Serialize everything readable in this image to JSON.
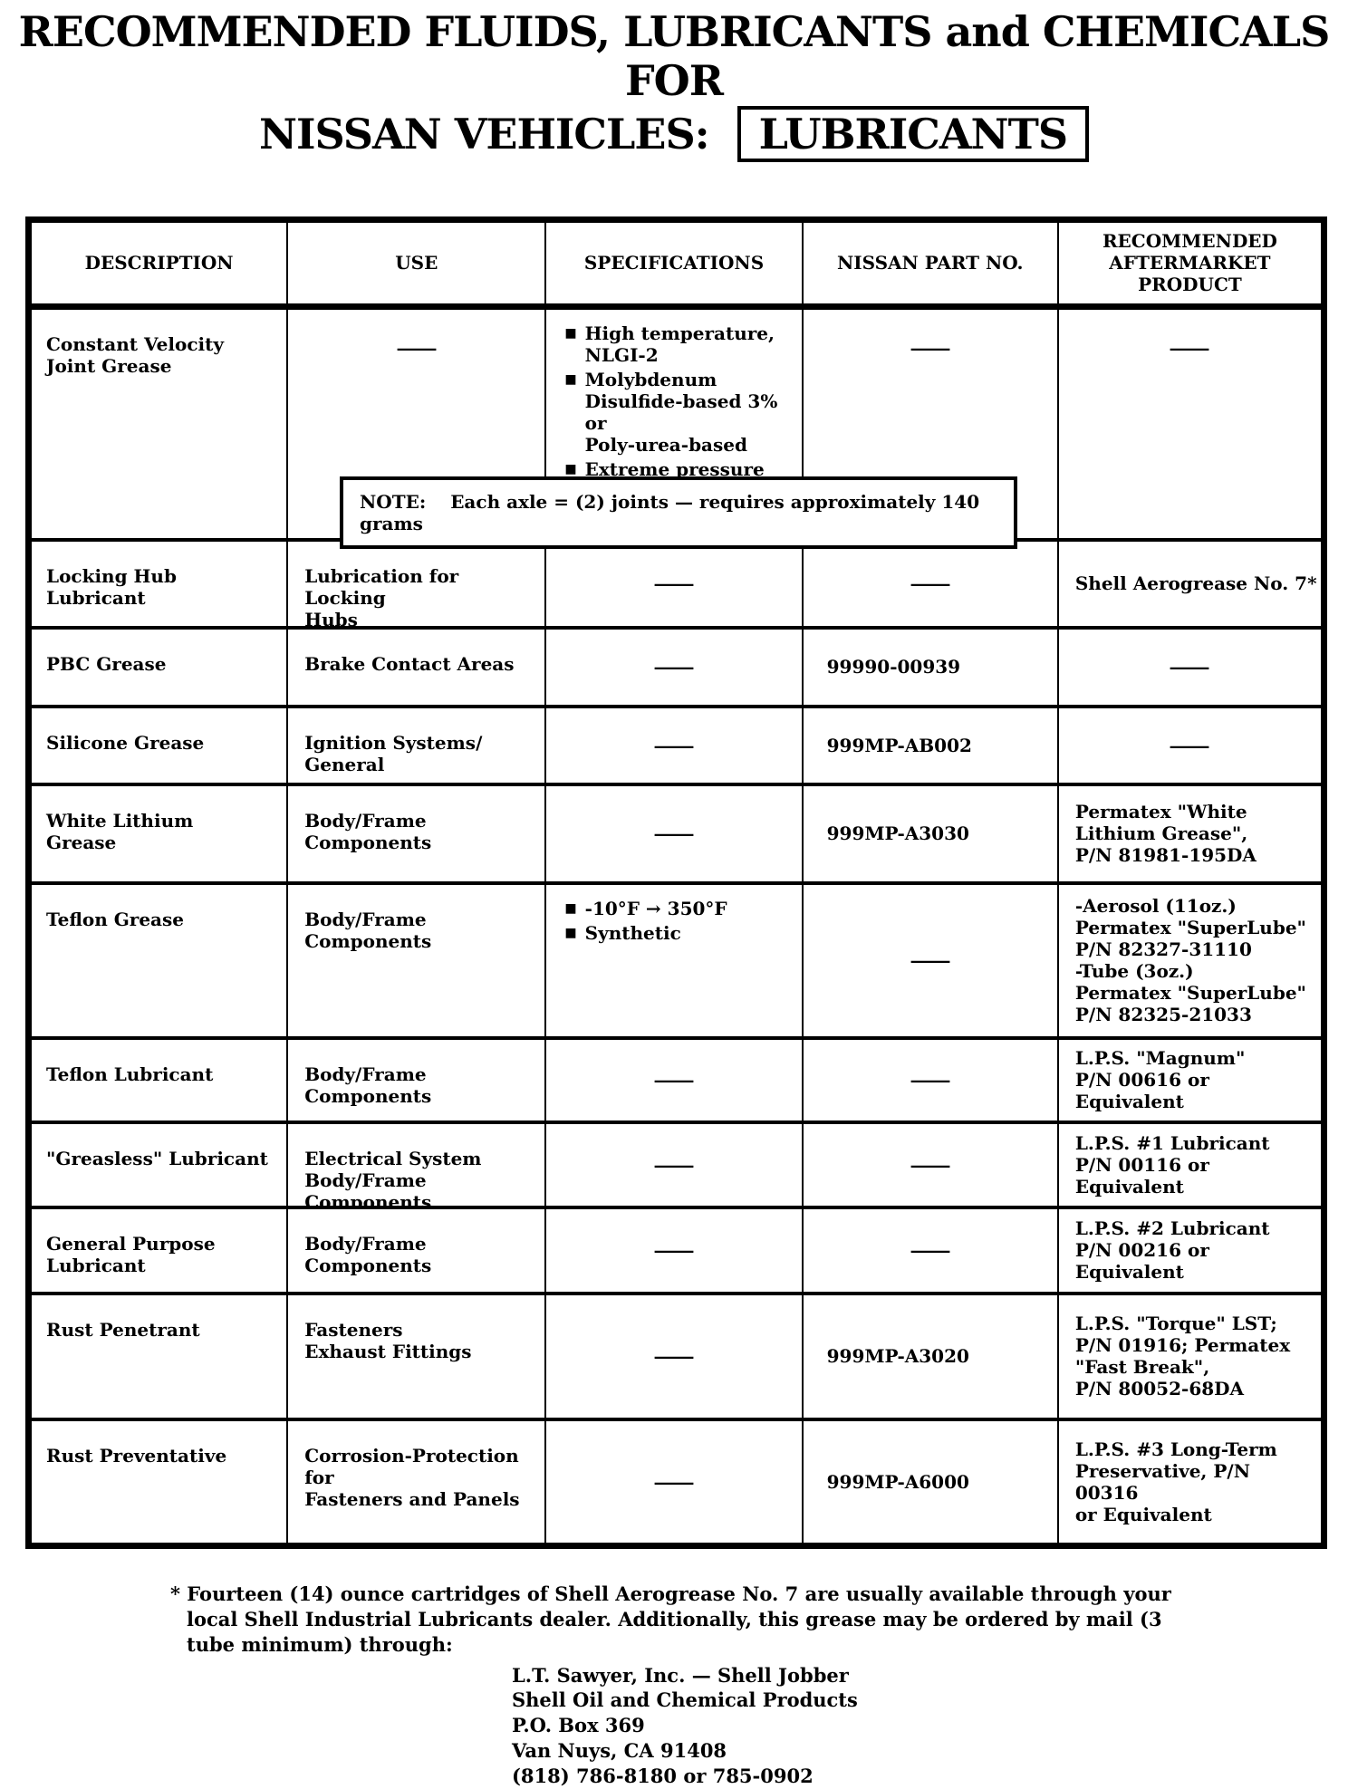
{
  "colors": {
    "ink": "#000000",
    "paper": "#ffffff"
  },
  "icons": {
    "bullet_square": "■"
  },
  "title": {
    "line1": "RECOMMENDED FLUIDS, LUBRICANTS and CHEMICALS FOR",
    "line2_prefix": "NISSAN VEHICLES:",
    "line2_boxed": "LUBRICANTS"
  },
  "table": {
    "headers": [
      "DESCRIPTION",
      "USE",
      "SPECIFICATIONS",
      "NISSAN PART NO.",
      "RECOMMENDED AFTERMARKET PRODUCT"
    ],
    "rows": [
      {
        "description": [
          "Constant Velocity",
          "Joint Grease"
        ],
        "use": "—",
        "specs": {
          "bullets": [
            [
              "High temperature,",
              "NLGI-2"
            ],
            [
              "Molybdenum",
              "Disulfide-based 3% or",
              "Poly-urea-based"
            ],
            [
              "Extreme pressure"
            ]
          ]
        },
        "part_no": "—",
        "aftermarket": "—",
        "note": {
          "label": "NOTE:",
          "text": "Each axle = (2) joints — requires approximately 140 grams"
        }
      },
      {
        "description": [
          "Locking Hub",
          "Lubricant"
        ],
        "use": [
          "Lubrication for Locking",
          "Hubs"
        ],
        "specs": "—",
        "part_no": "—",
        "aftermarket": [
          {
            "text": "Shell Aerogrease No. 7*"
          }
        ]
      },
      {
        "description": [
          "PBC Grease"
        ],
        "use": [
          "Brake Contact Areas"
        ],
        "specs": "—",
        "part_no": "99990-00939",
        "aftermarket": "—"
      },
      {
        "description": [
          "Silicone Grease"
        ],
        "use": [
          "Ignition Systems/",
          "General"
        ],
        "specs": "—",
        "part_no": "999MP-AB002",
        "aftermarket": "—"
      },
      {
        "description": [
          "White Lithium",
          "Grease"
        ],
        "use": [
          "Body/Frame Components"
        ],
        "specs": "—",
        "part_no": "999MP-A3030",
        "aftermarket": [
          {
            "text": "Permatex \"White"
          },
          {
            "text": "Lithium Grease\","
          },
          {
            "text": "P/N 81981-195DA"
          }
        ]
      },
      {
        "description": [
          "Teflon Grease"
        ],
        "use": [
          "Body/Frame Components"
        ],
        "specs": {
          "bullets": [
            [
              "-10°F → 350°F"
            ],
            [
              "Synthetic"
            ]
          ]
        },
        "part_no": "—",
        "aftermarket": [
          {
            "text": "-Aerosol (11oz.)",
            "bold": true
          },
          {
            "text": "Permatex \"SuperLube\""
          },
          {
            "text": "P/N 82327-31110"
          },
          {
            "text": "-Tube (3oz.)",
            "bold": true
          },
          {
            "text": "Permatex \"SuperLube\""
          },
          {
            "text": "P/N 82325-21033"
          }
        ]
      },
      {
        "description": [
          "Teflon Lubricant"
        ],
        "use": [
          "Body/Frame Components"
        ],
        "specs": "—",
        "part_no": "—",
        "aftermarket": [
          {
            "text": "L.P.S. \"Magnum\""
          },
          {
            "text": "P/N 00616 or Equivalent"
          }
        ]
      },
      {
        "description": [
          "\"Greasless\" Lubricant"
        ],
        "use": [
          "Electrical System",
          "Body/Frame Components"
        ],
        "specs": "—",
        "part_no": "—",
        "aftermarket": [
          {
            "text": "L.P.S. #1 Lubricant"
          },
          {
            "text": "P/N 00116 or Equivalent"
          }
        ]
      },
      {
        "description": [
          "General Purpose",
          "Lubricant"
        ],
        "use": [
          "Body/Frame Components"
        ],
        "specs": "—",
        "part_no": "—",
        "aftermarket": [
          {
            "text": "L.P.S. #2 Lubricant"
          },
          {
            "text": "P/N 00216 or Equivalent"
          }
        ]
      },
      {
        "description": [
          "Rust Penetrant"
        ],
        "use": [
          "Fasteners",
          "Exhaust Fittings"
        ],
        "specs": "—",
        "part_no": "999MP-A3020",
        "aftermarket": [
          {
            "text": "L.P.S. \"Torque\" LST;"
          },
          {
            "text": "P/N 01916; Permatex"
          },
          {
            "text": "\"Fast Break\","
          },
          {
            "text": "P/N 80052-68DA"
          }
        ]
      },
      {
        "description": [
          "Rust Preventative"
        ],
        "use": [
          "Corrosion-Protection for",
          "Fasteners and Panels"
        ],
        "specs": "—",
        "part_no": "999MP-A6000",
        "aftermarket": [
          {
            "text": "L.P.S. #3 Long-Term"
          },
          {
            "text": "Preservative, P/N 00316"
          },
          {
            "text": "or Equivalent"
          }
        ]
      }
    ]
  },
  "footnote": {
    "marker": "*",
    "text": "Fourteen (14) ounce cartridges of Shell Aerogrease No. 7 are usually available through your local Shell Industrial Lubricants dealer.  Additionally, this grease may be ordered by mail (3 tube minimum) through:"
  },
  "address": [
    "L.T. Sawyer, Inc. — Shell Jobber",
    "Shell Oil and Chemical Products",
    "P.O. Box 369",
    "Van Nuys, CA 91408",
    "(818) 786-8180 or 785-0902"
  ]
}
